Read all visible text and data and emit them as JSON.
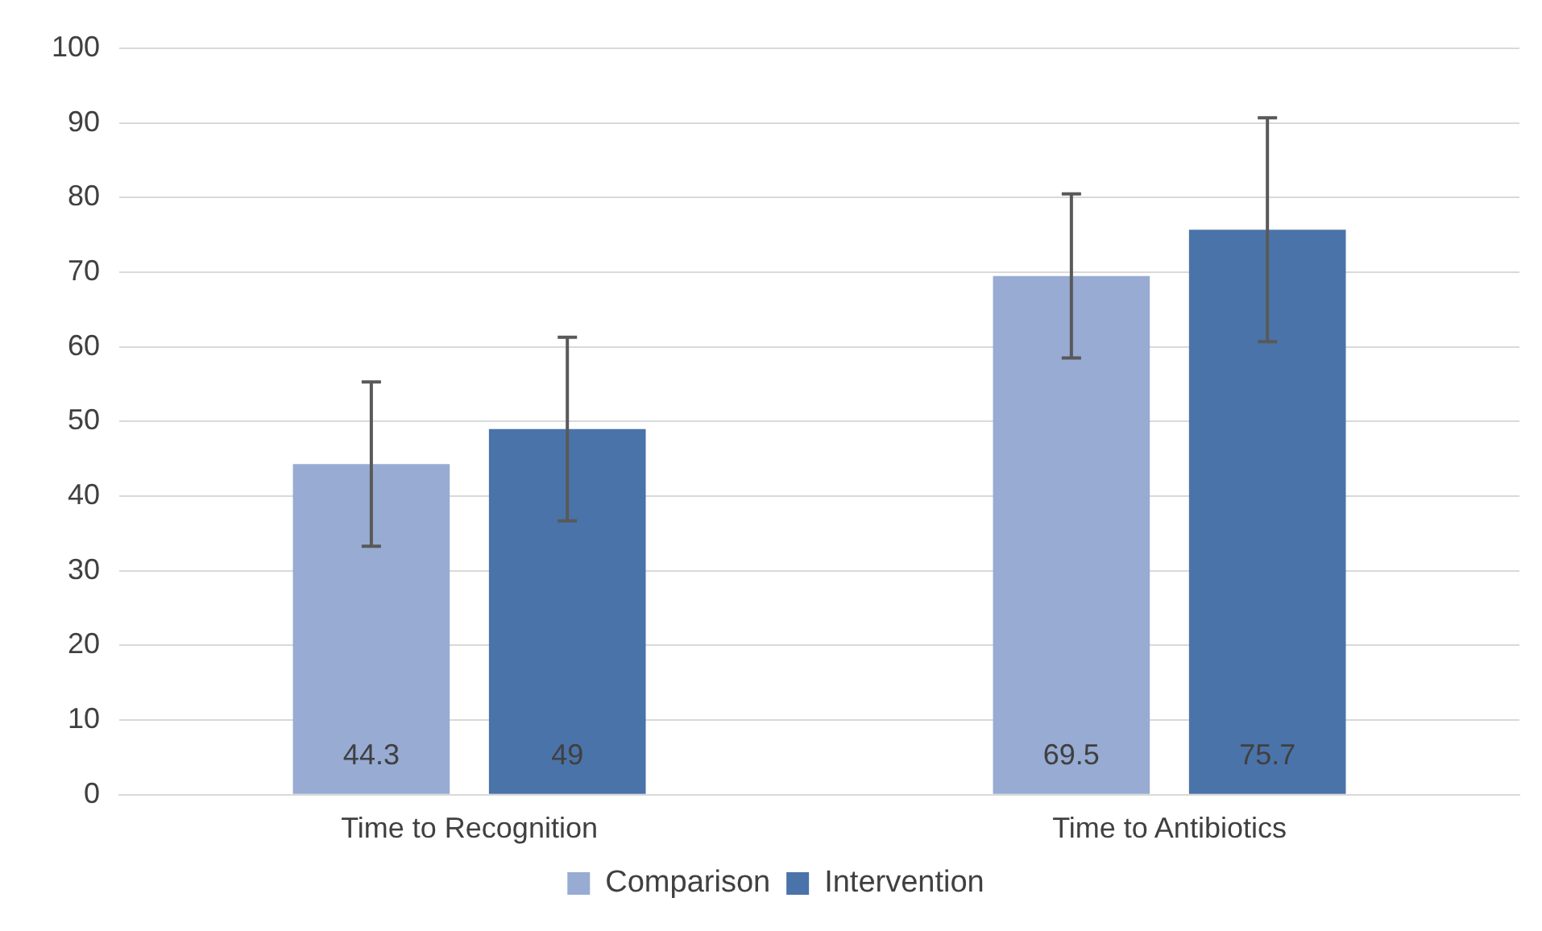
{
  "chart_data": {
    "type": "bar",
    "categories": [
      "Time to Recognition",
      "Time to Antibiotics"
    ],
    "series": [
      {
        "name": "Comparison",
        "color": "#97abd3",
        "values": [
          44.3,
          69.5
        ],
        "errors": [
          11,
          11
        ]
      },
      {
        "name": "Intervention",
        "color": "#4a73a9",
        "values": [
          49,
          75.7
        ],
        "errors": [
          12.3,
          15
        ]
      }
    ],
    "ylim": [
      0,
      100
    ],
    "yticks": [
      0,
      10,
      20,
      30,
      40,
      50,
      60,
      70,
      80,
      90,
      100
    ],
    "grid": "y",
    "legend": "bottom",
    "data_labels": true
  }
}
